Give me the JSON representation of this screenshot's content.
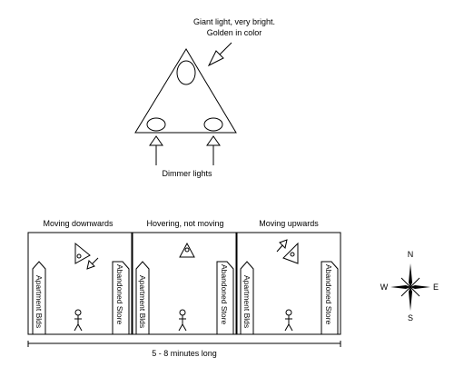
{
  "main_ufo": {
    "giant_light_label_line1": "Giant light, very bright.",
    "giant_light_label_line2": "Golden in color",
    "dimmer_lights_label": "Dimmer lights"
  },
  "panels": [
    {
      "caption": "Moving downwards",
      "left_building": "Apartment Blds",
      "right_building": "Abandoned Store"
    },
    {
      "caption": "Hovering, not moving",
      "left_building": "Apartment Blds",
      "right_building": "Abandoned Store"
    },
    {
      "caption": "Moving upwards",
      "left_building": "Apartment Blds",
      "right_building": "Abandoned Store"
    }
  ],
  "duration_label": "5 - 8 minutes long",
  "compass": {
    "north": "N",
    "south": "S",
    "east": "E",
    "west": "W"
  }
}
